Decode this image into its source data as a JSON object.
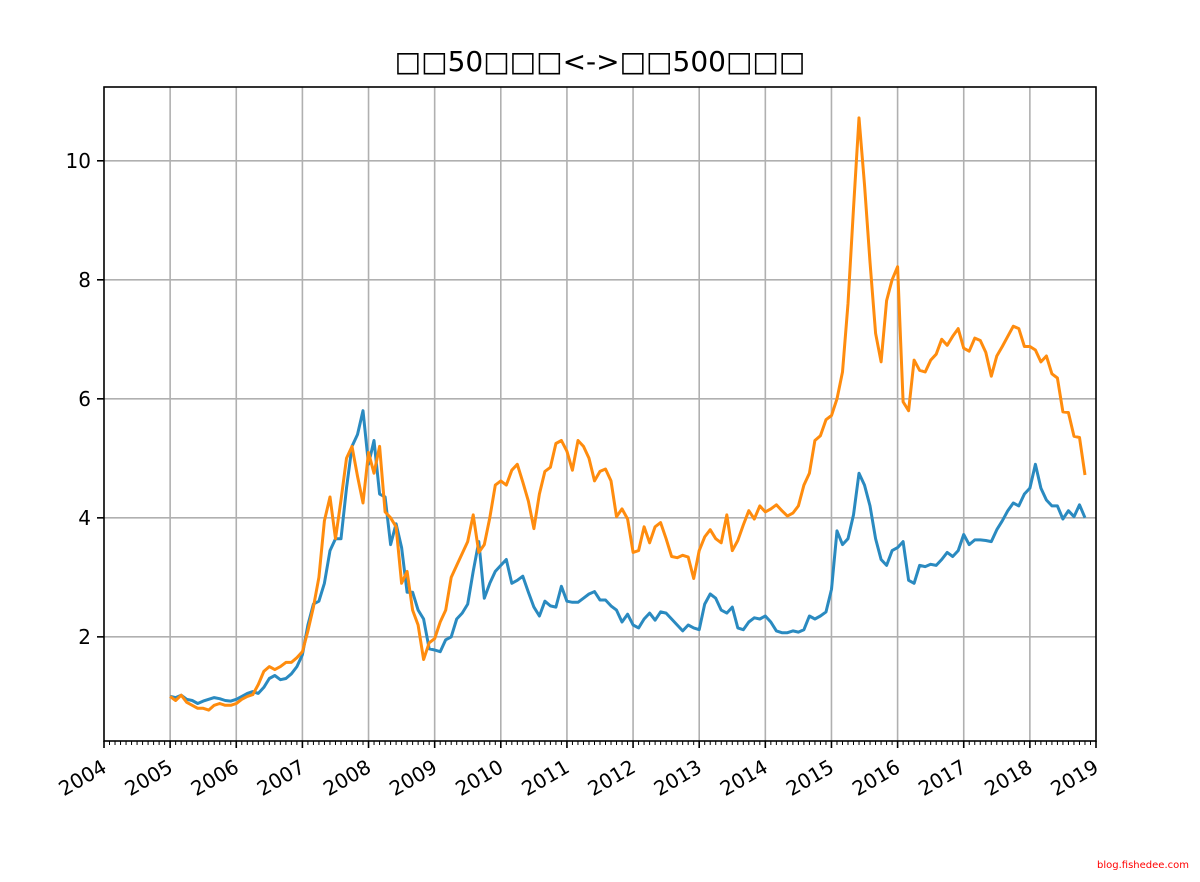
{
  "chart_data": {
    "type": "line",
    "title": "□□50□□□<->□□500□□□",
    "xlabel": "",
    "ylabel": "",
    "x_start": "2005-01",
    "x_step": "month",
    "xlim": [
      2004,
      2019
    ],
    "ylim": [
      0.25,
      11.24
    ],
    "grid": true,
    "x_ticks": [
      "2004",
      "2005",
      "2006",
      "2007",
      "2008",
      "2009",
      "2010",
      "2011",
      "2012",
      "2013",
      "2014",
      "2015",
      "2016",
      "2017",
      "2018",
      "2019"
    ],
    "y_ticks": [
      "2",
      "4",
      "6",
      "8",
      "10"
    ],
    "series": [
      {
        "name": "blue",
        "color": "#2a8ac0",
        "values": [
          1.0,
          0.98,
          1.02,
          0.95,
          0.93,
          0.88,
          0.92,
          0.95,
          0.98,
          0.96,
          0.93,
          0.92,
          0.95,
          1.0,
          1.05,
          1.08,
          1.05,
          1.15,
          1.3,
          1.35,
          1.28,
          1.3,
          1.38,
          1.5,
          1.7,
          2.2,
          2.55,
          2.6,
          2.9,
          3.45,
          3.65,
          3.65,
          4.5,
          5.2,
          5.4,
          5.8,
          4.9,
          5.3,
          4.4,
          4.35,
          3.55,
          3.9,
          3.5,
          2.75,
          2.75,
          2.45,
          2.3,
          1.8,
          1.78,
          1.75,
          1.95,
          2.0,
          2.3,
          2.4,
          2.55,
          3.1,
          3.6,
          2.65,
          2.9,
          3.1,
          3.2,
          3.3,
          2.9,
          2.95,
          3.02,
          2.75,
          2.5,
          2.35,
          2.6,
          2.52,
          2.5,
          2.85,
          2.6,
          2.58,
          2.58,
          2.65,
          2.72,
          2.76,
          2.62,
          2.62,
          2.52,
          2.45,
          2.25,
          2.38,
          2.2,
          2.15,
          2.3,
          2.4,
          2.28,
          2.42,
          2.4,
          2.3,
          2.2,
          2.1,
          2.2,
          2.15,
          2.12,
          2.55,
          2.72,
          2.65,
          2.45,
          2.4,
          2.5,
          2.15,
          2.12,
          2.25,
          2.32,
          2.3,
          2.35,
          2.25,
          2.1,
          2.07,
          2.07,
          2.1,
          2.08,
          2.12,
          2.35,
          2.3,
          2.35,
          2.42,
          2.8,
          3.78,
          3.55,
          3.65,
          4.05,
          4.75,
          4.55,
          4.2,
          3.65,
          3.3,
          3.2,
          3.45,
          3.5,
          3.6,
          2.95,
          2.9,
          3.2,
          3.18,
          3.22,
          3.2,
          3.3,
          3.42,
          3.35,
          3.45,
          3.72,
          3.55,
          3.63,
          3.63,
          3.62,
          3.6,
          3.8,
          3.95,
          4.12,
          4.25,
          4.2,
          4.4,
          4.5,
          4.9,
          4.5,
          4.3,
          4.2,
          4.2,
          3.98,
          4.12,
          4.02,
          4.22,
          4.0
        ]
      },
      {
        "name": "orange",
        "color": "#ff8c0e",
        "values": [
          1.0,
          0.93,
          1.02,
          0.9,
          0.85,
          0.8,
          0.8,
          0.77,
          0.85,
          0.88,
          0.85,
          0.85,
          0.88,
          0.95,
          1.0,
          1.03,
          1.2,
          1.42,
          1.5,
          1.45,
          1.5,
          1.57,
          1.57,
          1.65,
          1.75,
          2.1,
          2.5,
          3.0,
          3.95,
          4.35,
          3.65,
          4.3,
          5.0,
          5.2,
          4.7,
          4.25,
          5.1,
          4.75,
          5.2,
          4.1,
          4.0,
          3.85,
          2.9,
          3.1,
          2.45,
          2.2,
          1.62,
          1.9,
          1.97,
          2.25,
          2.45,
          3.0,
          3.2,
          3.4,
          3.6,
          4.05,
          3.42,
          3.55,
          4.0,
          4.55,
          4.62,
          4.55,
          4.8,
          4.9,
          4.6,
          4.28,
          3.82,
          4.4,
          4.78,
          4.85,
          5.25,
          5.3,
          5.12,
          4.8,
          5.3,
          5.2,
          5.0,
          4.62,
          4.78,
          4.82,
          4.62,
          4.02,
          4.15,
          3.98,
          3.42,
          3.45,
          3.85,
          3.58,
          3.85,
          3.92,
          3.65,
          3.35,
          3.33,
          3.37,
          3.34,
          2.98,
          3.45,
          3.68,
          3.8,
          3.65,
          3.58,
          4.05,
          3.45,
          3.62,
          3.88,
          4.12,
          3.98,
          4.2,
          4.1,
          4.15,
          4.22,
          4.12,
          4.03,
          4.08,
          4.2,
          4.55,
          4.75,
          5.3,
          5.38,
          5.65,
          5.72,
          6.0,
          6.45,
          7.6,
          9.2,
          10.72,
          9.6,
          8.3,
          7.1,
          6.62,
          7.65,
          8.0,
          8.22,
          5.95,
          5.8,
          6.65,
          6.48,
          6.45,
          6.65,
          6.75,
          7.0,
          6.9,
          7.05,
          7.18,
          6.85,
          6.8,
          7.02,
          6.98,
          6.78,
          6.38,
          6.72,
          6.88,
          7.05,
          7.22,
          7.18,
          6.88,
          6.88,
          6.82,
          6.62,
          6.72,
          6.42,
          6.35,
          5.78,
          5.77,
          5.37,
          5.35,
          4.72
        ]
      }
    ]
  },
  "watermark": "blog.fishedee.com"
}
